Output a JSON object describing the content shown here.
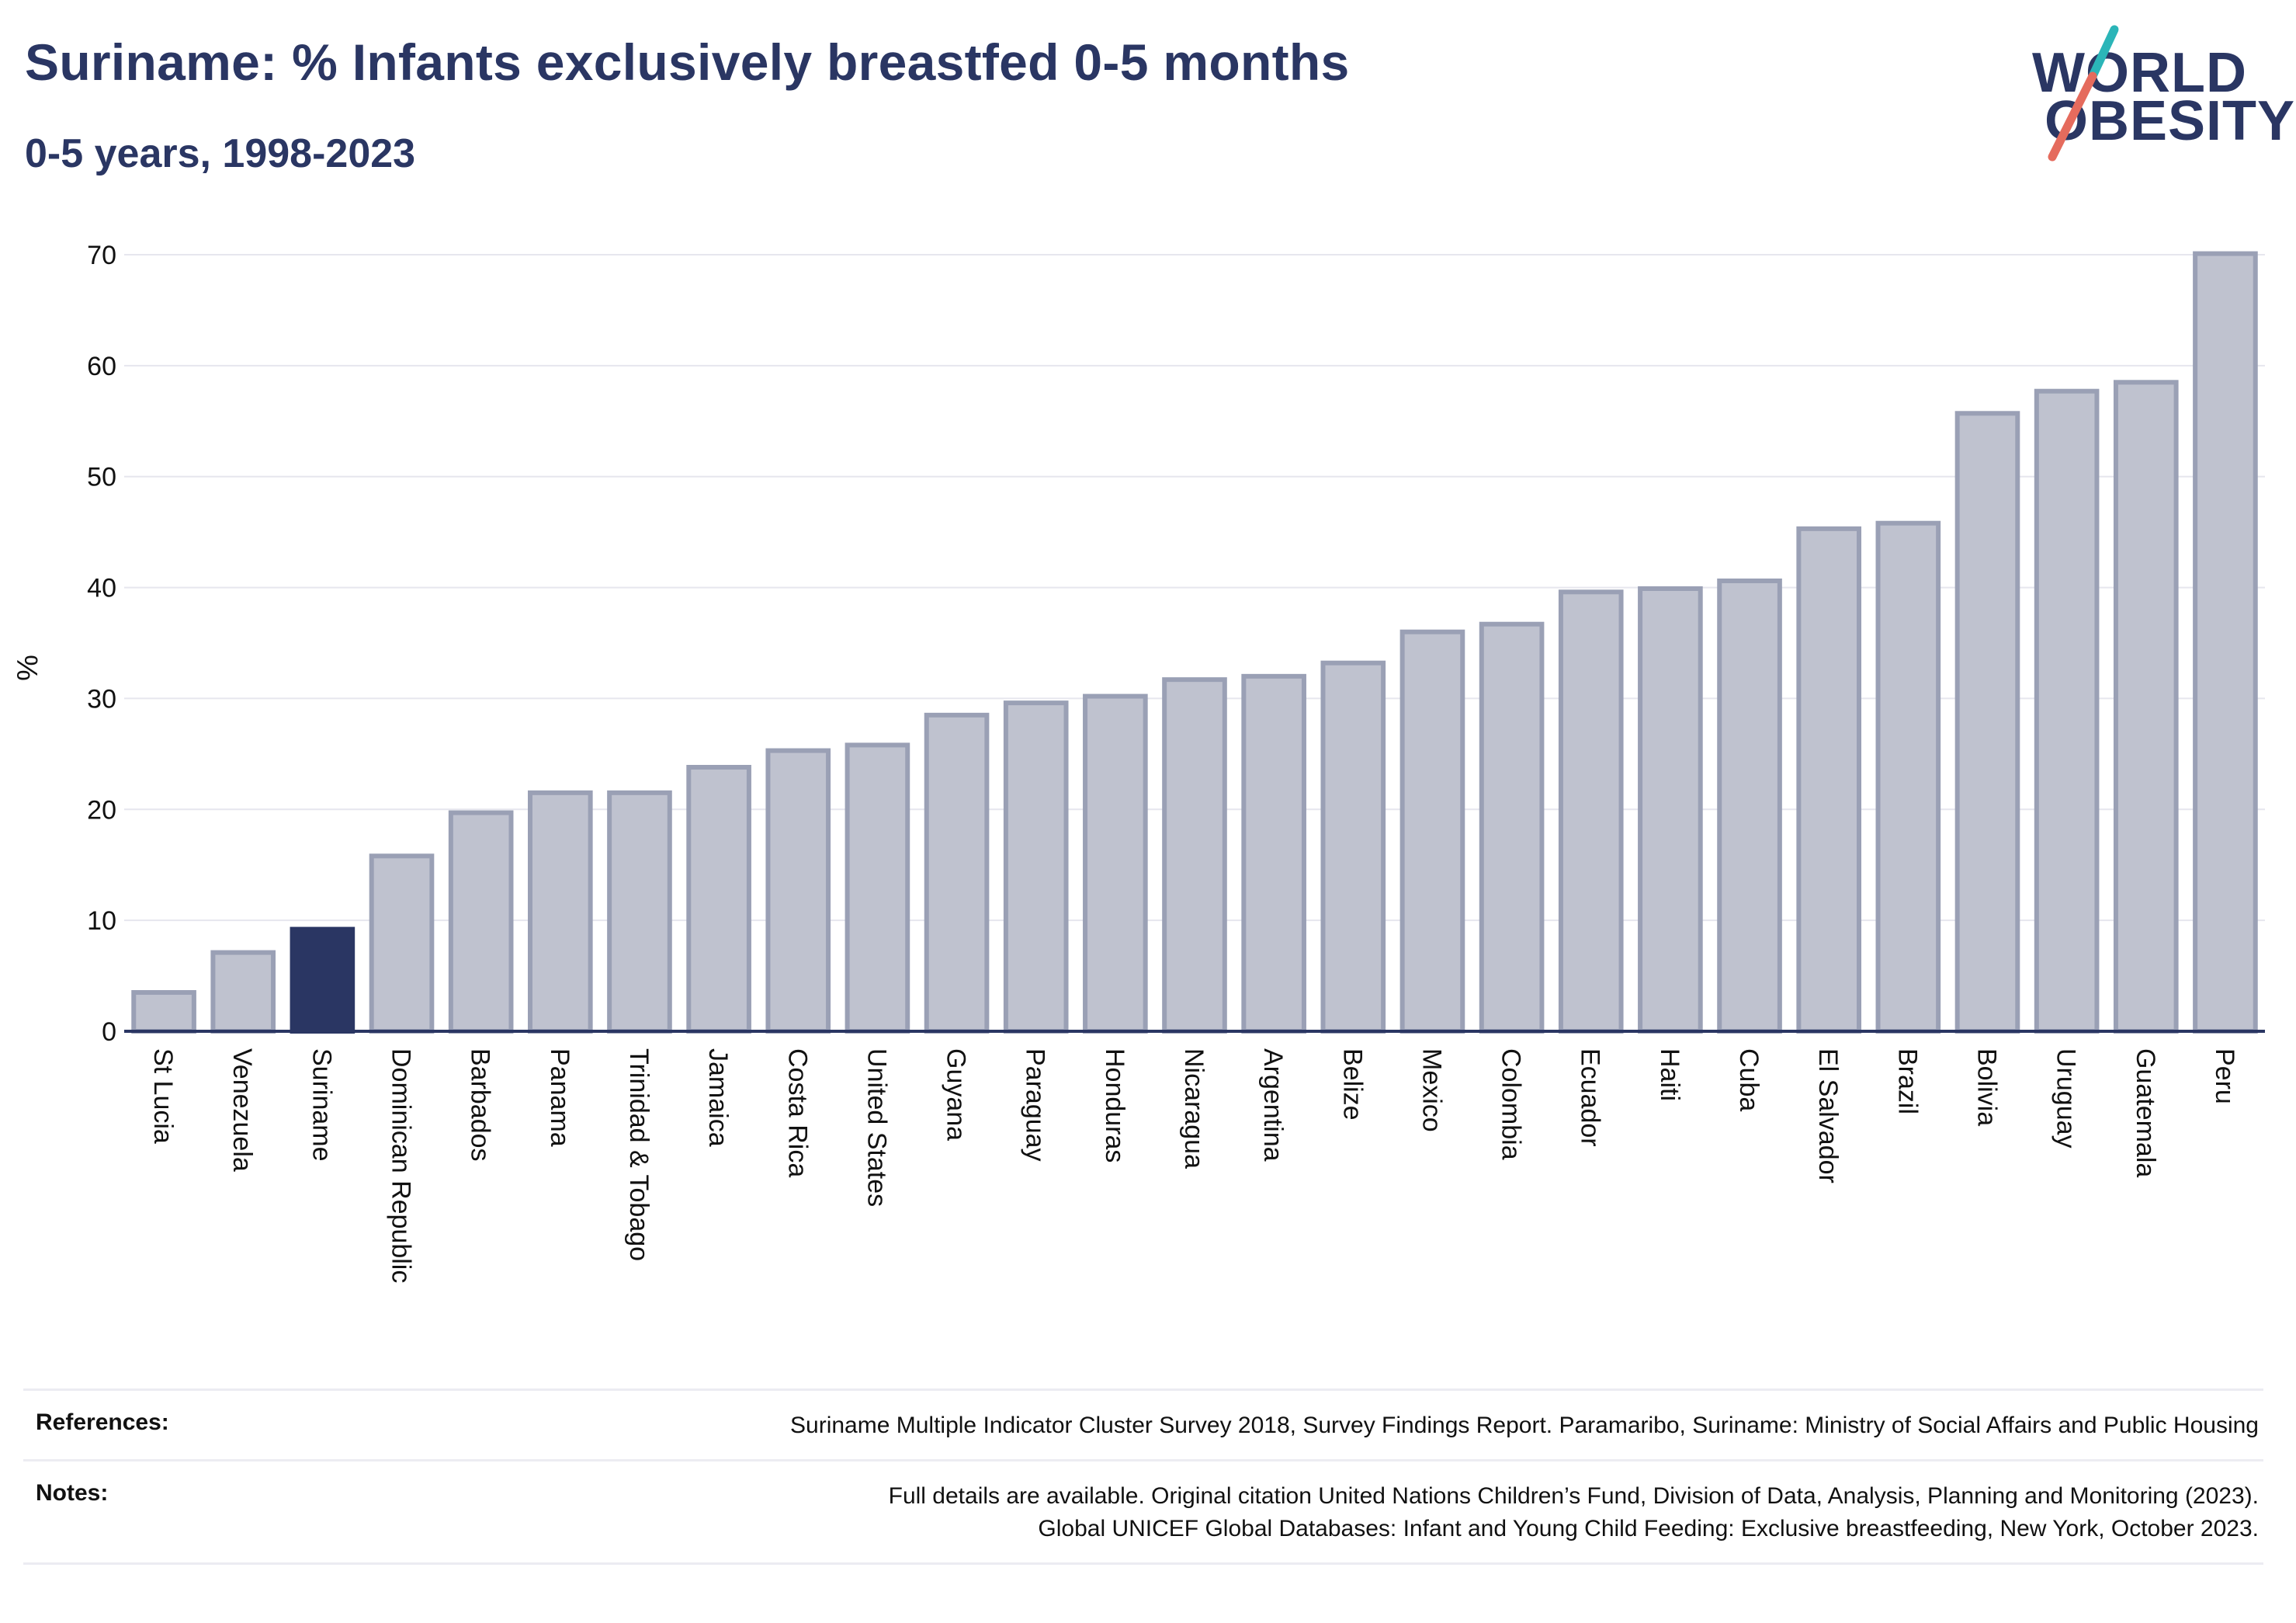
{
  "header": {
    "title": "Suriname: % Infants exclusively breastfed 0-5 months",
    "subtitle": "0-5 years, 1998-2023"
  },
  "logo": {
    "line1": "WORLD",
    "line2": "OBESITY",
    "slash_color_top": "#2bb5b8",
    "slash_color_bottom": "#e56b5d"
  },
  "colors": {
    "highlight_bar": "#2a3663",
    "other_bar_fill": "#bfc2cf",
    "other_bar_stroke": "#9aa0b5",
    "grid": "#e6e6ee",
    "axis": "#2a3663",
    "text": "#111111"
  },
  "chart_data": {
    "type": "bar",
    "title": "Suriname: % Infants exclusively breastfed 0-5 months",
    "subtitle": "0-5 years, 1998-2023",
    "ylabel": "%",
    "xlabel": "",
    "ylim": [
      0,
      70
    ],
    "yticks": [
      0,
      10,
      20,
      30,
      40,
      50,
      60,
      70
    ],
    "grid": true,
    "highlight": "Suriname",
    "categories": [
      "St Lucia",
      "Venezuela",
      "Suriname",
      "Dominican Republic",
      "Barbados",
      "Panama",
      "Trinidad & Tobago",
      "Jamaica",
      "Costa Rica",
      "United States",
      "Guyana",
      "Paraguay",
      "Honduras",
      "Nicaragua",
      "Argentina",
      "Belize",
      "Mexico",
      "Colombia",
      "Ecuador",
      "Haiti",
      "Cuba",
      "El Salvador",
      "Brazil",
      "Bolivia",
      "Uruguay",
      "Guatemala",
      "Peru"
    ],
    "values": [
      3.5,
      7.1,
      9.2,
      15.8,
      19.7,
      21.5,
      21.5,
      23.8,
      25.3,
      25.8,
      28.5,
      29.6,
      30.2,
      31.7,
      32.0,
      33.2,
      36.0,
      36.7,
      39.6,
      39.9,
      40.6,
      45.3,
      45.8,
      55.7,
      57.7,
      58.5,
      70.1
    ]
  },
  "references": {
    "label": "References:",
    "text": "Suriname Multiple Indicator Cluster Survey 2018, Survey Findings Report. Paramaribo, Suriname: Ministry of Social Affairs and Public Housing"
  },
  "notes": {
    "label": "Notes:",
    "line1": "Full details are available. Original citation United Nations Children’s Fund, Division of Data, Analysis, Planning and Monitoring (2023).",
    "line2": "Global UNICEF Global Databases: Infant and Young Child Feeding: Exclusive breastfeeding, New York, October 2023."
  }
}
